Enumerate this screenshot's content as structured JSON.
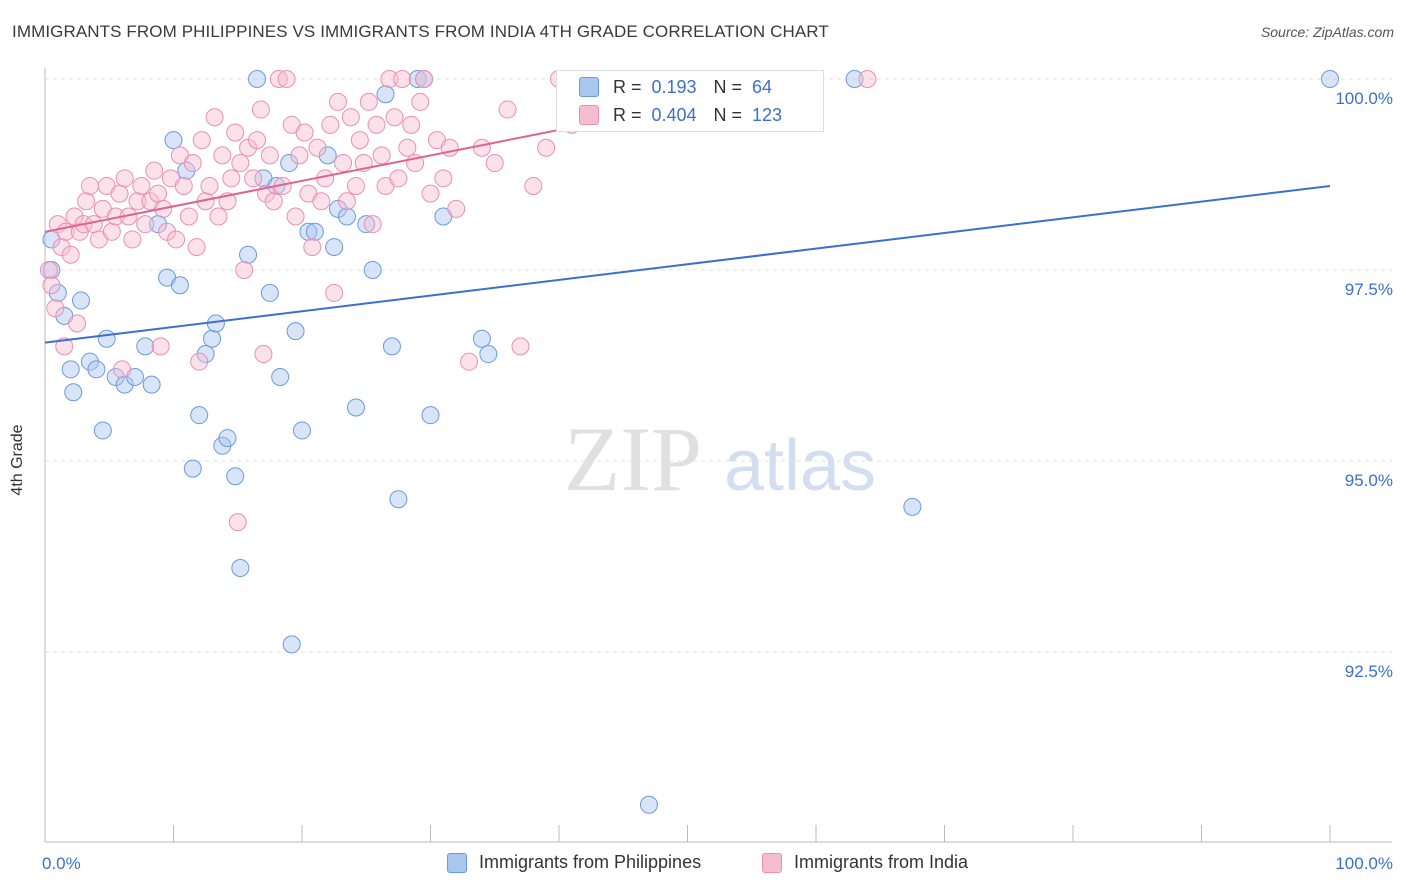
{
  "title": "IMMIGRANTS FROM PHILIPPINES VS IMMIGRANTS FROM INDIA 4TH GRADE CORRELATION CHART",
  "source": "Source: ZipAtlas.com",
  "watermark": {
    "zip": "ZIP",
    "atlas": "atlas"
  },
  "colors": {
    "blue": "#3b6fd0",
    "blue_fill": "#a9c6f0",
    "blue_stroke": "#6a9ae0",
    "pink": "#e0628f",
    "pink_fill": "#f6bcd0",
    "pink_stroke": "#ec8fb0",
    "grid": "#e2e2e2",
    "tick_label": "#3b6fd0"
  },
  "legend": {
    "rows": [
      {
        "r_label": "R =",
        "r_value": "0.193",
        "n_label": "N =",
        "n_value": "64",
        "color": "blue"
      },
      {
        "r_label": "R =",
        "r_value": "0.404",
        "n_label": "N =",
        "n_value": "123",
        "color": "pink"
      }
    ]
  },
  "bottom_legend": [
    "Immigrants from Philippines",
    "Immigrants from India"
  ],
  "chart_data": {
    "type": "scatter",
    "xlabel": "",
    "ylabel": "4th Grade",
    "xlim": [
      0,
      100
    ],
    "ylim": [
      90.0,
      100.2
    ],
    "x_tick_labels": [
      "0.0%",
      "100.0%"
    ],
    "y_ticks": [
      92.5,
      95.0,
      97.5,
      100.0
    ],
    "y_tick_labels": [
      "92.5%",
      "95.0%",
      "97.5%",
      "100.0%"
    ],
    "grid": "horizontal dashed",
    "legend_placement": "bottom",
    "series": [
      {
        "name": "Immigrants from Philippines",
        "color": "blue",
        "trend": {
          "x": [
            0,
            100
          ],
          "y": [
            96.55,
            98.6
          ]
        },
        "points": [
          [
            0.5,
            97.9
          ],
          [
            0.5,
            97.5
          ],
          [
            1.0,
            97.2
          ],
          [
            1.5,
            96.9
          ],
          [
            2.0,
            96.2
          ],
          [
            2.2,
            95.9
          ],
          [
            2.8,
            97.1
          ],
          [
            3.5,
            96.3
          ],
          [
            4.0,
            96.2
          ],
          [
            4.5,
            95.4
          ],
          [
            4.8,
            96.6
          ],
          [
            5.5,
            96.1
          ],
          [
            6.2,
            96.0
          ],
          [
            7.0,
            96.1
          ],
          [
            7.8,
            96.5
          ],
          [
            8.3,
            96.0
          ],
          [
            8.8,
            98.1
          ],
          [
            9.5,
            97.4
          ],
          [
            10.0,
            99.2
          ],
          [
            10.5,
            97.3
          ],
          [
            11.0,
            98.8
          ],
          [
            11.5,
            94.9
          ],
          [
            12.0,
            95.6
          ],
          [
            12.5,
            96.4
          ],
          [
            13.0,
            96.6
          ],
          [
            13.3,
            96.8
          ],
          [
            13.8,
            95.2
          ],
          [
            14.2,
            95.3
          ],
          [
            14.8,
            94.8
          ],
          [
            15.2,
            93.6
          ],
          [
            15.8,
            97.7
          ],
          [
            16.5,
            100.0
          ],
          [
            17.0,
            98.7
          ],
          [
            17.5,
            97.2
          ],
          [
            18.0,
            98.6
          ],
          [
            18.3,
            96.1
          ],
          [
            19.0,
            98.9
          ],
          [
            19.2,
            92.6
          ],
          [
            19.5,
            96.7
          ],
          [
            20.0,
            95.4
          ],
          [
            20.5,
            98.0
          ],
          [
            21.0,
            98.0
          ],
          [
            22.0,
            99.0
          ],
          [
            22.5,
            97.8
          ],
          [
            22.8,
            98.3
          ],
          [
            23.5,
            98.2
          ],
          [
            24.2,
            95.7
          ],
          [
            25.0,
            98.1
          ],
          [
            25.5,
            97.5
          ],
          [
            26.5,
            99.8
          ],
          [
            27.0,
            96.5
          ],
          [
            27.5,
            94.5
          ],
          [
            29.0,
            100.0
          ],
          [
            29.5,
            100.0
          ],
          [
            30.0,
            95.6
          ],
          [
            31.0,
            98.2
          ],
          [
            34.0,
            96.6
          ],
          [
            34.5,
            96.4
          ],
          [
            47.0,
            90.5
          ],
          [
            57.0,
            100.0
          ],
          [
            59.5,
            100.0
          ],
          [
            63.0,
            100.0
          ],
          [
            67.5,
            94.4
          ],
          [
            100.0,
            100.0
          ]
        ]
      },
      {
        "name": "Immigrants from India",
        "color": "pink",
        "trend": {
          "x": [
            0,
            60
          ],
          "y": [
            98.0,
            100.0
          ]
        },
        "points": [
          [
            0.3,
            97.5
          ],
          [
            0.5,
            97.3
          ],
          [
            0.8,
            97.0
          ],
          [
            1.0,
            98.1
          ],
          [
            1.3,
            97.8
          ],
          [
            1.6,
            98.0
          ],
          [
            2.0,
            97.7
          ],
          [
            2.3,
            98.2
          ],
          [
            2.7,
            98.0
          ],
          [
            3.0,
            98.1
          ],
          [
            3.2,
            98.4
          ],
          [
            3.5,
            98.6
          ],
          [
            3.8,
            98.1
          ],
          [
            4.2,
            97.9
          ],
          [
            4.5,
            98.3
          ],
          [
            4.8,
            98.6
          ],
          [
            5.2,
            98.0
          ],
          [
            5.5,
            98.2
          ],
          [
            5.8,
            98.5
          ],
          [
            6.2,
            98.7
          ],
          [
            6.5,
            98.2
          ],
          [
            6.8,
            97.9
          ],
          [
            7.2,
            98.4
          ],
          [
            7.5,
            98.6
          ],
          [
            7.8,
            98.1
          ],
          [
            8.2,
            98.4
          ],
          [
            8.5,
            98.8
          ],
          [
            8.8,
            98.5
          ],
          [
            9.2,
            98.3
          ],
          [
            9.5,
            98.0
          ],
          [
            9.8,
            98.7
          ],
          [
            10.2,
            97.9
          ],
          [
            10.5,
            99.0
          ],
          [
            10.8,
            98.6
          ],
          [
            11.2,
            98.2
          ],
          [
            11.5,
            98.9
          ],
          [
            11.8,
            97.8
          ],
          [
            12.2,
            99.2
          ],
          [
            12.5,
            98.4
          ],
          [
            12.8,
            98.6
          ],
          [
            13.2,
            99.5
          ],
          [
            13.5,
            98.2
          ],
          [
            13.8,
            99.0
          ],
          [
            14.2,
            98.4
          ],
          [
            14.5,
            98.7
          ],
          [
            14.8,
            99.3
          ],
          [
            15.2,
            98.9
          ],
          [
            15.5,
            97.5
          ],
          [
            15.8,
            99.1
          ],
          [
            16.2,
            98.7
          ],
          [
            16.5,
            99.2
          ],
          [
            16.8,
            99.6
          ],
          [
            17.2,
            98.5
          ],
          [
            17.5,
            99.0
          ],
          [
            17.8,
            98.4
          ],
          [
            18.2,
            100.0
          ],
          [
            18.5,
            98.6
          ],
          [
            18.8,
            100.0
          ],
          [
            19.2,
            99.4
          ],
          [
            19.5,
            98.2
          ],
          [
            19.8,
            99.0
          ],
          [
            20.2,
            99.3
          ],
          [
            20.5,
            98.5
          ],
          [
            20.8,
            97.8
          ],
          [
            21.2,
            99.1
          ],
          [
            21.5,
            98.4
          ],
          [
            21.8,
            98.7
          ],
          [
            22.2,
            99.4
          ],
          [
            22.5,
            97.2
          ],
          [
            22.8,
            99.7
          ],
          [
            23.2,
            98.9
          ],
          [
            23.5,
            98.4
          ],
          [
            23.8,
            99.5
          ],
          [
            24.2,
            98.6
          ],
          [
            24.5,
            99.2
          ],
          [
            24.8,
            98.9
          ],
          [
            25.2,
            99.7
          ],
          [
            25.5,
            98.1
          ],
          [
            25.8,
            99.4
          ],
          [
            26.2,
            99.0
          ],
          [
            26.5,
            98.6
          ],
          [
            26.8,
            100.0
          ],
          [
            27.2,
            99.5
          ],
          [
            27.5,
            98.7
          ],
          [
            27.8,
            100.0
          ],
          [
            28.2,
            99.1
          ],
          [
            28.5,
            99.4
          ],
          [
            28.8,
            98.9
          ],
          [
            29.2,
            99.7
          ],
          [
            29.5,
            100.0
          ],
          [
            30.0,
            98.5
          ],
          [
            30.5,
            99.2
          ],
          [
            31.0,
            98.7
          ],
          [
            31.5,
            99.1
          ],
          [
            32.0,
            98.3
          ],
          [
            33.0,
            96.3
          ],
          [
            34.0,
            99.1
          ],
          [
            35.0,
            98.9
          ],
          [
            36.0,
            99.6
          ],
          [
            37.0,
            96.5
          ],
          [
            38.0,
            98.6
          ],
          [
            39.0,
            99.1
          ],
          [
            40.0,
            100.0
          ],
          [
            41.0,
            99.4
          ],
          [
            42.0,
            100.0
          ],
          [
            43.0,
            99.8
          ],
          [
            44.0,
            100.0
          ],
          [
            45.0,
            99.9
          ],
          [
            46.0,
            100.0
          ],
          [
            47.0,
            100.0
          ],
          [
            48.0,
            99.7
          ],
          [
            49.0,
            100.0
          ],
          [
            52.0,
            100.0
          ],
          [
            55.0,
            99.8
          ],
          [
            58.0,
            99.9
          ],
          [
            64.0,
            100.0
          ],
          [
            1.5,
            96.5
          ],
          [
            2.5,
            96.8
          ],
          [
            6.0,
            96.2
          ],
          [
            9.0,
            96.5
          ],
          [
            12.0,
            96.3
          ],
          [
            15.0,
            94.2
          ],
          [
            17.0,
            96.4
          ]
        ]
      }
    ]
  }
}
